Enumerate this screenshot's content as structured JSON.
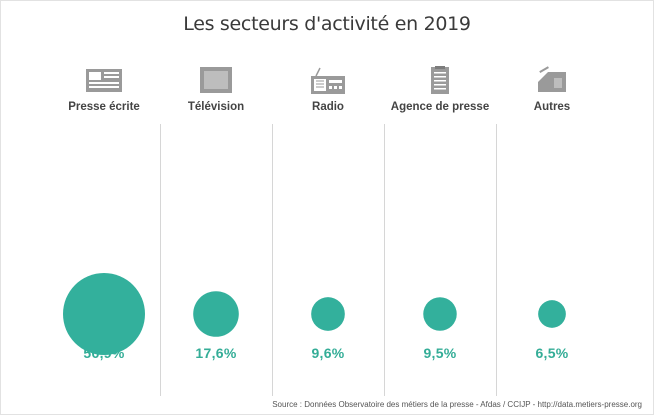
{
  "chart_data": {
    "type": "bubble",
    "title": "Les secteurs d'activité en 2019",
    "categories": [
      "Presse écrite",
      "Télévision",
      "Radio",
      "Agence de presse",
      "Autres"
    ],
    "values": [
      56.9,
      17.6,
      9.6,
      9.5,
      6.5
    ],
    "value_labels": [
      "56,9%",
      "17,6%",
      "9,6%",
      "9,5%",
      "6,5%"
    ],
    "icons": [
      "newspaper-icon",
      "television-icon",
      "radio-icon",
      "press-agency-document-icon",
      "other-card-icon"
    ],
    "unit": "%"
  },
  "source": "Source : Données Observatoire des métiers de la presse - Afdas / CCIJP - http://data.metiers-presse.org",
  "colors": {
    "bubble": "#33b09c",
    "value_text": "#34ad97",
    "icon": "#9a9a9a",
    "divider": "#d6d6d6"
  }
}
